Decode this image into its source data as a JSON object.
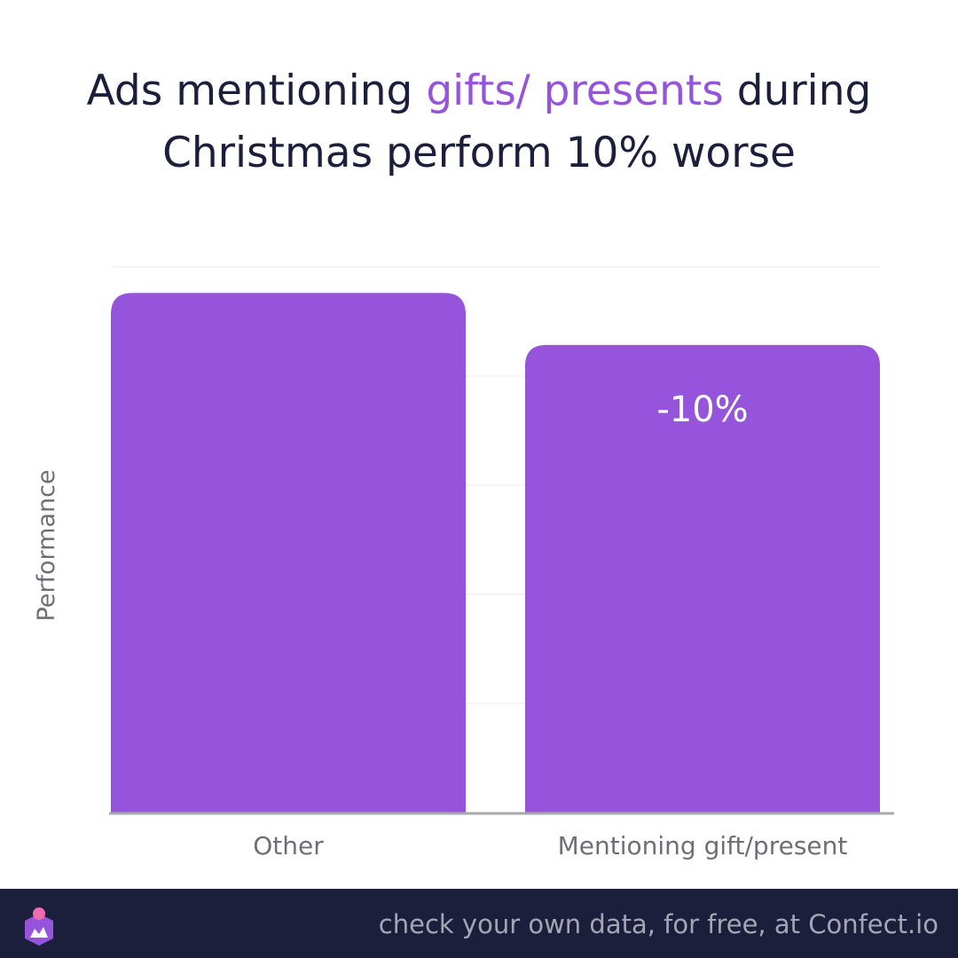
{
  "title": {
    "part1": "Ads mentioning ",
    "highlight": "gifts/ presents",
    "part2": " during",
    "line2": "Christmas perform 10% worse"
  },
  "chart_data": {
    "type": "bar",
    "categories": [
      "Other",
      "Mentioning gift/present"
    ],
    "values": [
      100,
      90
    ],
    "data_labels": [
      "",
      "-10%"
    ],
    "ylabel": "Performance",
    "ylim": [
      0,
      105
    ],
    "grid": true,
    "y_tick_labels_shown": false,
    "bar_color": "#9653dc"
  },
  "colors": {
    "accent": "#9653dc",
    "title": "#1c1f3b",
    "footer_bg": "#1c1f3b"
  },
  "footer": {
    "text": "check your own data, for free, at Confect.io",
    "logo_icon": "confect-logo-icon"
  }
}
